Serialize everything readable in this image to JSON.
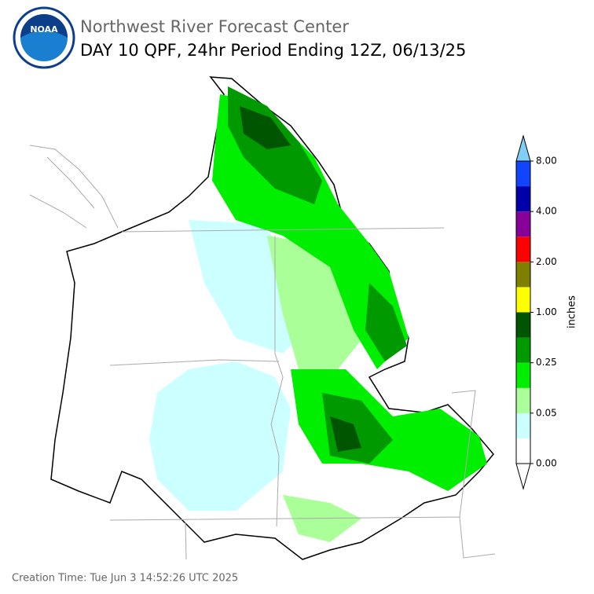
{
  "header": {
    "title": "Northwest River Forecast Center",
    "subtitle": "DAY 10 QPF, 24hr Period Ending 12Z, 06/13/25"
  },
  "logo": {
    "text": "NOAA"
  },
  "colorbar": {
    "label": "inches",
    "colors": [
      "#ffffff",
      "#ccffff",
      "#aaff99",
      "#00ee00",
      "#009900",
      "#005500",
      "#ffff00",
      "#7f7f00",
      "#ff0000",
      "#880099",
      "#0000aa",
      "#1144ff"
    ],
    "under_color": "#ffffff",
    "over_color": "#7fcff5",
    "ticks": [
      {
        "value": 0,
        "label": "0.00"
      },
      {
        "value": 0.05,
        "label": "0.05"
      },
      {
        "value": 0.25,
        "label": "0.25"
      },
      {
        "value": 1,
        "label": "1.00"
      },
      {
        "value": 2,
        "label": "2.00"
      },
      {
        "value": 4,
        "label": "4.00"
      },
      {
        "value": 8,
        "label": "8.00"
      }
    ]
  },
  "footer": {
    "creation_time": "Creation Time: Tue Jun 3 14:52:26 UTC 2025"
  }
}
